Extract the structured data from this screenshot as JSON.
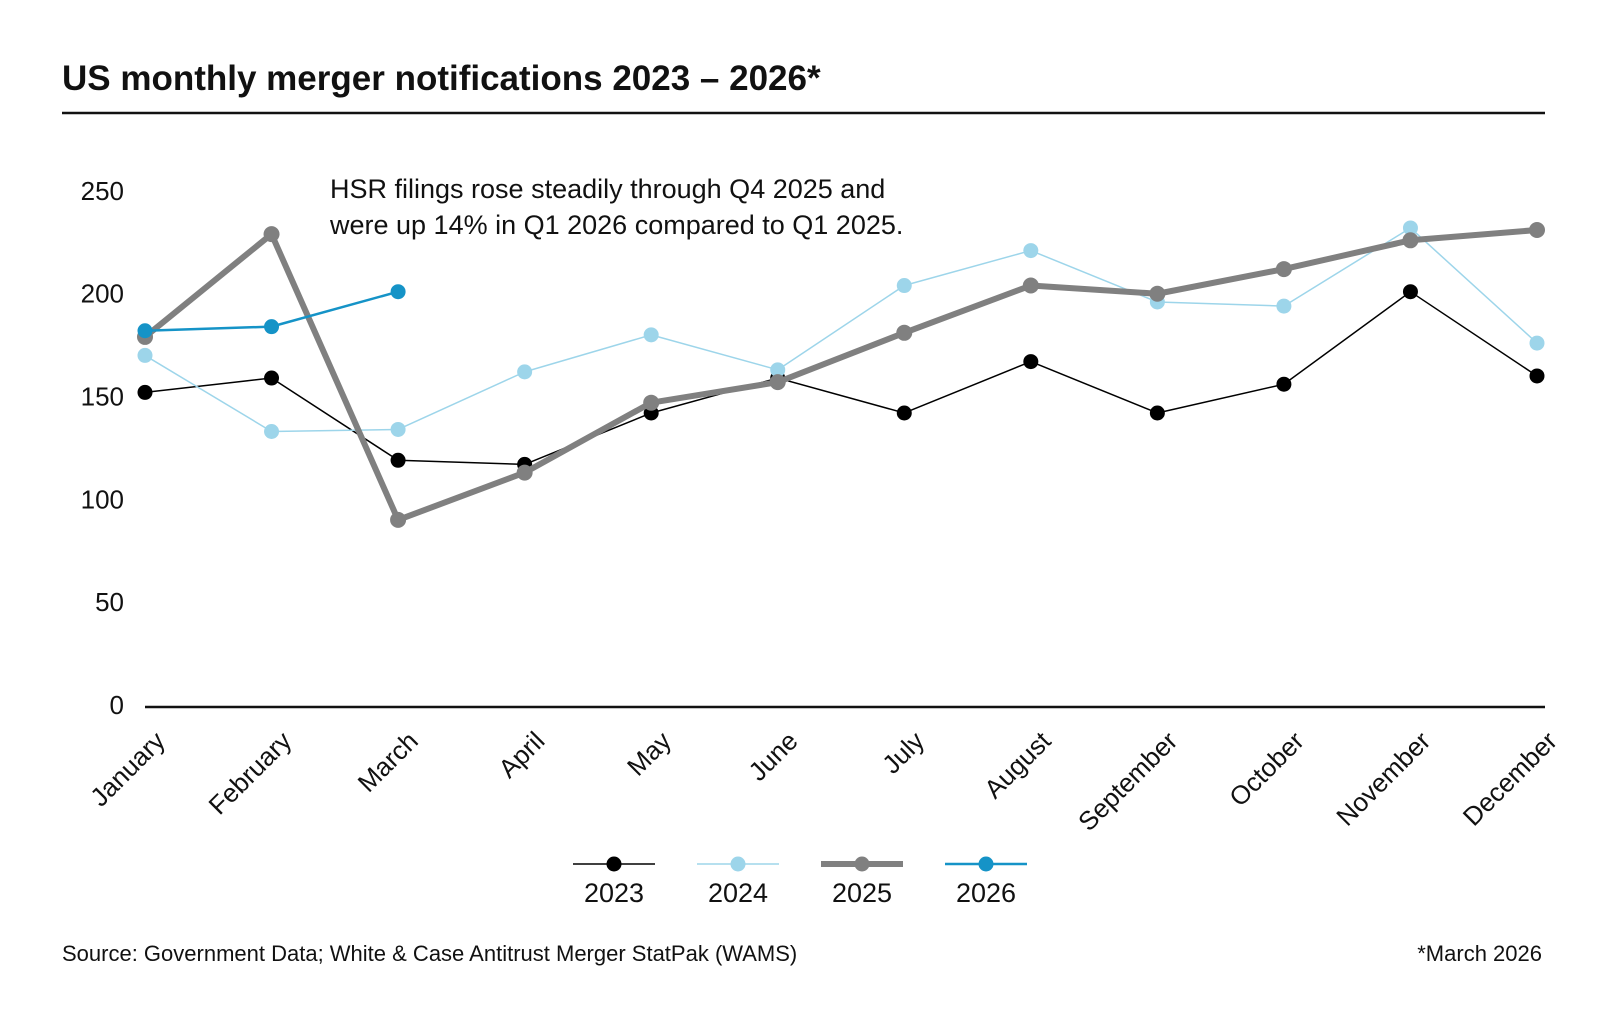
{
  "chart_data": {
    "type": "line",
    "title": "US monthly merger notifications 2023 – 2026*",
    "annotation": [
      "HSR filings rose steadily through Q4 2025 and",
      "were up 14% in Q1 2026 compared to Q1 2025."
    ],
    "source": "Source: Government Data; White & Case Antitrust Merger StatPak (WAMS)",
    "note": "*March 2026",
    "categories": [
      "January",
      "February",
      "March",
      "April",
      "May",
      "June",
      "July",
      "August",
      "September",
      "October",
      "November",
      "December"
    ],
    "series": [
      {
        "name": "2023",
        "color": "#000000",
        "line_width": 1.5,
        "values": [
          153,
          160,
          120,
          118,
          143,
          160,
          143,
          168,
          143,
          157,
          202,
          161
        ]
      },
      {
        "name": "2024",
        "color": "#9dd5ea",
        "line_width": 1.5,
        "values": [
          171,
          134,
          135,
          163,
          181,
          164,
          205,
          222,
          197,
          195,
          233,
          177
        ]
      },
      {
        "name": "2025",
        "color": "#808080",
        "line_width": 6,
        "values": [
          180,
          230,
          91,
          114,
          148,
          158,
          182,
          205,
          201,
          213,
          227,
          232
        ]
      },
      {
        "name": "2026",
        "color": "#1593c7",
        "line_width": 2.5,
        "values": [
          183,
          185,
          202,
          null,
          null,
          null,
          null,
          null,
          null,
          null,
          null,
          null
        ]
      }
    ],
    "ylim": [
      0,
      250
    ],
    "yticks": [
      0,
      50,
      100,
      150,
      200,
      250
    ],
    "grid": false
  }
}
